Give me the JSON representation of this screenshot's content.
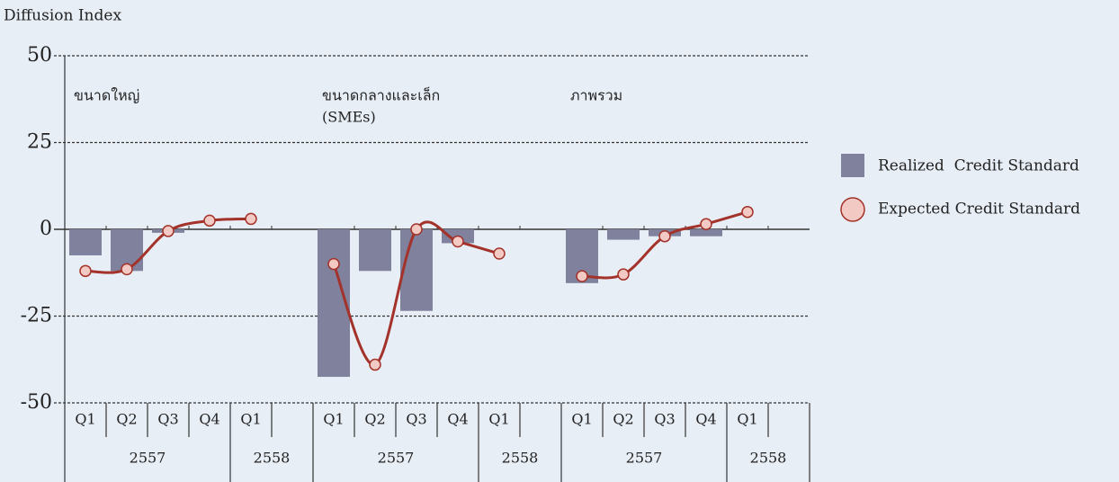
{
  "chart_data": {
    "type": "bar",
    "y_axis_label": "Diffusion Index",
    "ylim": [
      -50,
      50
    ],
    "yticks": [
      -50,
      -25,
      0,
      25,
      50
    ],
    "grid": true,
    "legend": "right",
    "panels": [
      {
        "title": [
          "ขนาดใหญ่"
        ],
        "categories": [
          "Q1",
          "Q2",
          "Q3",
          "Q4",
          "Q1"
        ],
        "years": [
          "2557",
          "2558"
        ]
      },
      {
        "title": [
          "ขนาดกลางและเล็ก",
          "(SMEs)"
        ],
        "categories": [
          "Q1",
          "Q2",
          "Q3",
          "Q4",
          "Q1"
        ],
        "years": [
          "2557",
          "2558"
        ]
      },
      {
        "title": [
          "ภาพรวม"
        ],
        "categories": [
          "Q1",
          "Q2",
          "Q3",
          "Q4",
          "Q1"
        ],
        "years": [
          "2557",
          "2558"
        ]
      }
    ],
    "series": [
      {
        "name": "Realized  Credit Standard",
        "color": "#7f819d",
        "kind": "bar",
        "values": [
          [
            -7.5,
            -12,
            -1,
            0,
            null
          ],
          [
            -42.5,
            -12,
            -23.5,
            -4,
            null
          ],
          [
            -15.5,
            -3,
            -2,
            -2,
            null
          ]
        ]
      },
      {
        "name": "Expected Credit Standard",
        "color": "#a3322a",
        "kind": "line",
        "values": [
          [
            -12,
            -11.5,
            -0.5,
            2.5,
            3
          ],
          [
            -10,
            -39,
            0,
            -3.5,
            -7
          ],
          [
            -13.5,
            -13,
            -2,
            1.5,
            5
          ]
        ]
      }
    ]
  }
}
